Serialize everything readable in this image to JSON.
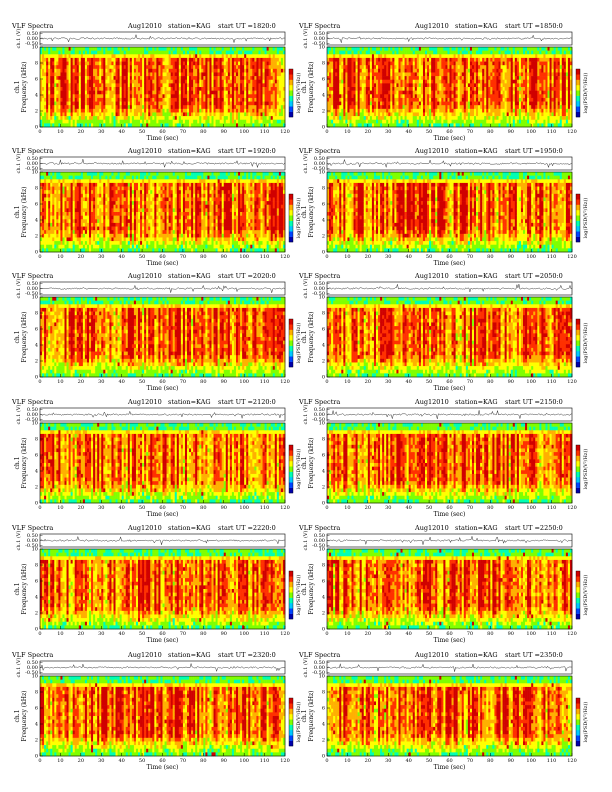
{
  "page": {
    "panel_title": "VLF Spectra",
    "date": "Aug12010",
    "station": "station=KAG",
    "start_prefix": "start  UT  ="
  },
  "colors": {
    "colormap": [
      "#0000aa",
      "#0044ff",
      "#00c8ff",
      "#00ffb4",
      "#7fff00",
      "#ffff00",
      "#ffb000",
      "#ff3000",
      "#d00000"
    ],
    "trace": "#333333"
  },
  "chart_data": [
    {
      "type": "heatmap",
      "start_ut": "1820:0",
      "xlabel": "Time  (sec)",
      "ylabel_top": "ch.1 (V)",
      "ylabel_spec": "Frequency  (kHz)",
      "ylabel_spec2": "ch.1",
      "cbar_label": "log(PSD(V²/Hz))",
      "xticks": [
        0,
        10,
        20,
        30,
        40,
        50,
        60,
        70,
        80,
        90,
        100,
        110,
        120
      ],
      "yticks_spec": [
        0,
        2,
        4,
        6,
        8,
        10
      ],
      "yticks_top": [
        "0.50",
        "0.00",
        "-0.50"
      ],
      "xlim": [
        0,
        120
      ],
      "ylim_spec": [
        0,
        10
      ],
      "ylim_top": [
        -0.5,
        0.5
      ]
    },
    {
      "type": "heatmap",
      "start_ut": "1850:0",
      "xlabel": "Time  (sec)",
      "ylabel_top": "ch.1 (V)",
      "ylabel_spec": "Frequency  (kHz)",
      "ylabel_spec2": "ch.1",
      "cbar_label": "log(PSD(V²/Hz))",
      "xticks": [
        0,
        10,
        20,
        30,
        40,
        50,
        60,
        70,
        80,
        90,
        100,
        110,
        120
      ],
      "yticks_spec": [
        0,
        2,
        4,
        6,
        8,
        10
      ],
      "yticks_top": [
        "0.50",
        "0.00",
        "-0.50"
      ],
      "xlim": [
        0,
        120
      ],
      "ylim_spec": [
        0,
        10
      ],
      "ylim_top": [
        -0.5,
        0.5
      ]
    },
    {
      "type": "heatmap",
      "start_ut": "1920:0",
      "xlabel": "Time  (sec)",
      "ylabel_top": "ch.1 (V)",
      "ylabel_spec": "Frequency  (kHz)",
      "ylabel_spec2": "ch.1",
      "cbar_label": "log(PSD(V²/Hz))",
      "xticks": [
        0,
        10,
        20,
        30,
        40,
        50,
        60,
        70,
        80,
        90,
        100,
        110,
        120
      ],
      "yticks_spec": [
        0,
        2,
        4,
        6,
        8,
        10
      ],
      "yticks_top": [
        "0.50",
        "0.00",
        "-0.50"
      ],
      "xlim": [
        0,
        120
      ],
      "ylim_spec": [
        0,
        10
      ],
      "ylim_top": [
        -0.5,
        0.5
      ]
    },
    {
      "type": "heatmap",
      "start_ut": "1950:0",
      "xlabel": "Time  (sec)",
      "ylabel_top": "ch.1 (V)",
      "ylabel_spec": "Frequency  (kHz)",
      "ylabel_spec2": "ch.1",
      "cbar_label": "log(PSD(V²/Hz))",
      "xticks": [
        0,
        10,
        20,
        30,
        40,
        50,
        60,
        70,
        80,
        90,
        100,
        110,
        120
      ],
      "yticks_spec": [
        0,
        2,
        4,
        6,
        8,
        10
      ],
      "yticks_top": [
        "0.50",
        "0.00",
        "-0.50"
      ],
      "xlim": [
        0,
        120
      ],
      "ylim_spec": [
        0,
        10
      ],
      "ylim_top": [
        -0.5,
        0.5
      ]
    },
    {
      "type": "heatmap",
      "start_ut": "2020:0",
      "xlabel": "Time  (sec)",
      "ylabel_top": "ch.1 (V)",
      "ylabel_spec": "Frequency  (kHz)",
      "ylabel_spec2": "ch.1",
      "cbar_label": "log(PSD(V²/Hz))",
      "xticks": [
        0,
        10,
        20,
        30,
        40,
        50,
        60,
        70,
        80,
        90,
        100,
        110,
        120
      ],
      "yticks_spec": [
        0,
        2,
        4,
        6,
        8,
        10
      ],
      "yticks_top": [
        "0.50",
        "0.00",
        "-0.50"
      ],
      "xlim": [
        0,
        120
      ],
      "ylim_spec": [
        0,
        10
      ],
      "ylim_top": [
        -0.5,
        0.5
      ]
    },
    {
      "type": "heatmap",
      "start_ut": "2050:0",
      "xlabel": "Time  (sec)",
      "ylabel_top": "ch.1 (V)",
      "ylabel_spec": "Frequency  (kHz)",
      "ylabel_spec2": "ch.1",
      "cbar_label": "log(PSD(V²/Hz))",
      "xticks": [
        0,
        10,
        20,
        30,
        40,
        50,
        60,
        70,
        80,
        90,
        100,
        110,
        120
      ],
      "yticks_spec": [
        0,
        2,
        4,
        6,
        8,
        10
      ],
      "yticks_top": [
        "0.50",
        "0.00",
        "-0.50"
      ],
      "xlim": [
        0,
        120
      ],
      "ylim_spec": [
        0,
        10
      ],
      "ylim_top": [
        -0.5,
        0.5
      ]
    },
    {
      "type": "heatmap",
      "start_ut": "2120:0",
      "xlabel": "Time  (sec)",
      "ylabel_top": "ch.1 (V)",
      "ylabel_spec": "Frequency  (kHz)",
      "ylabel_spec2": "ch.1",
      "cbar_label": "log(PSD(V²/Hz))",
      "xticks": [
        0,
        10,
        20,
        30,
        40,
        50,
        60,
        70,
        80,
        90,
        100,
        110,
        120
      ],
      "yticks_spec": [
        0,
        2,
        4,
        6,
        8,
        10
      ],
      "yticks_top": [
        "0.50",
        "0.00",
        "-0.50"
      ],
      "xlim": [
        0,
        120
      ],
      "ylim_spec": [
        0,
        10
      ],
      "ylim_top": [
        -0.5,
        0.5
      ]
    },
    {
      "type": "heatmap",
      "start_ut": "2150:0",
      "xlabel": "Time  (sec)",
      "ylabel_top": "ch.1 (V)",
      "ylabel_spec": "Frequency  (kHz)",
      "ylabel_spec2": "ch.1",
      "cbar_label": "log(PSD(V²/Hz))",
      "xticks": [
        0,
        10,
        20,
        30,
        40,
        50,
        60,
        70,
        80,
        90,
        100,
        110,
        120
      ],
      "yticks_spec": [
        0,
        2,
        4,
        6,
        8,
        10
      ],
      "yticks_top": [
        "0.50",
        "0.00",
        "-0.50"
      ],
      "xlim": [
        0,
        120
      ],
      "ylim_spec": [
        0,
        10
      ],
      "ylim_top": [
        -0.5,
        0.5
      ]
    },
    {
      "type": "heatmap",
      "start_ut": "2220:0",
      "xlabel": "Time  (sec)",
      "ylabel_top": "ch.1 (V)",
      "ylabel_spec": "Frequency  (kHz)",
      "ylabel_spec2": "ch.1",
      "cbar_label": "log(PSD(V²/Hz))",
      "xticks": [
        0,
        10,
        20,
        30,
        40,
        50,
        60,
        70,
        80,
        90,
        100,
        110,
        120
      ],
      "yticks_spec": [
        0,
        2,
        4,
        6,
        8,
        10
      ],
      "yticks_top": [
        "0.50",
        "0.00",
        "-0.50"
      ],
      "xlim": [
        0,
        120
      ],
      "ylim_spec": [
        0,
        10
      ],
      "ylim_top": [
        -0.5,
        0.5
      ]
    },
    {
      "type": "heatmap",
      "start_ut": "2250:0",
      "xlabel": "Time  (sec)",
      "ylabel_top": "ch.1 (V)",
      "ylabel_spec": "Frequency  (kHz)",
      "ylabel_spec2": "ch.1",
      "cbar_label": "log(PSD(V²/Hz))",
      "xticks": [
        0,
        10,
        20,
        30,
        40,
        50,
        60,
        70,
        80,
        90,
        100,
        110,
        120
      ],
      "yticks_spec": [
        0,
        2,
        4,
        6,
        8,
        10
      ],
      "yticks_top": [
        "0.50",
        "0.00",
        "-0.50"
      ],
      "xlim": [
        0,
        120
      ],
      "ylim_spec": [
        0,
        10
      ],
      "ylim_top": [
        -0.5,
        0.5
      ]
    },
    {
      "type": "heatmap",
      "start_ut": "2320:0",
      "xlabel": "Time  (sec)",
      "ylabel_top": "ch.1 (V)",
      "ylabel_spec": "Frequency  (kHz)",
      "ylabel_spec2": "ch.1",
      "cbar_label": "log(PSD(V²/Hz))",
      "xticks": [
        0,
        10,
        20,
        30,
        40,
        50,
        60,
        70,
        80,
        90,
        100,
        110,
        120
      ],
      "yticks_spec": [
        0,
        2,
        4,
        6,
        8,
        10
      ],
      "yticks_top": [
        "0.50",
        "0.00",
        "-0.50"
      ],
      "xlim": [
        0,
        120
      ],
      "ylim_spec": [
        0,
        10
      ],
      "ylim_top": [
        -0.5,
        0.5
      ]
    },
    {
      "type": "heatmap",
      "start_ut": "2350:0",
      "xlabel": "Time  (sec)",
      "ylabel_top": "ch.1 (V)",
      "ylabel_spec": "Frequency  (kHz)",
      "ylabel_spec2": "ch.1",
      "cbar_label": "log(PSD(V²/Hz))",
      "xticks": [
        0,
        10,
        20,
        30,
        40,
        50,
        60,
        70,
        80,
        90,
        100,
        110,
        120
      ],
      "yticks_spec": [
        0,
        2,
        4,
        6,
        8,
        10
      ],
      "yticks_top": [
        "0.50",
        "0.00",
        "-0.50"
      ],
      "xlim": [
        0,
        120
      ],
      "ylim_spec": [
        0,
        10
      ],
      "ylim_top": [
        -0.5,
        0.5
      ]
    }
  ]
}
